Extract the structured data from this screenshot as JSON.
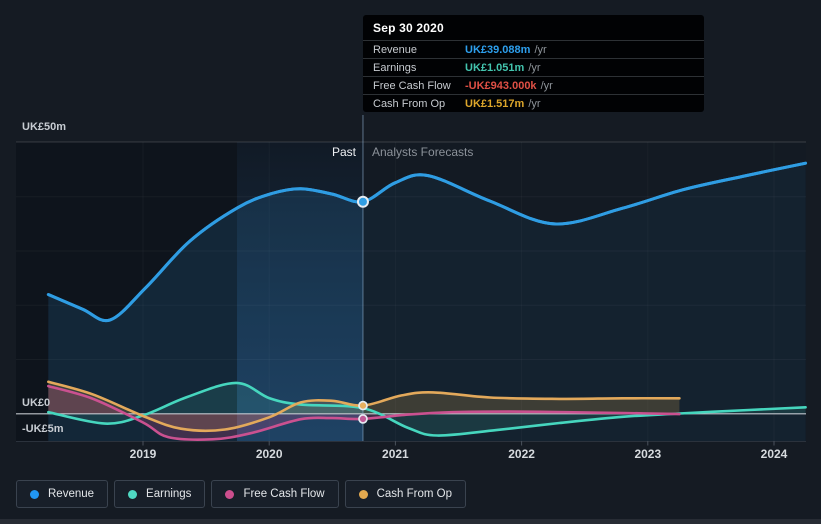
{
  "page": {
    "background": "#151b23",
    "bottom_bar_color": "#272c34"
  },
  "regions": {
    "past_label": "Past",
    "forecast_label": "Analysts Forecasts"
  },
  "axis": {
    "y_top": "UK£50m",
    "y_zero": "UK£0",
    "y_neg": "-UK£5m"
  },
  "tooltip": {
    "title": "Sep 30 2020",
    "unit_suffix": "/yr",
    "rows": [
      {
        "label": "Revenue",
        "value": "UK£39.088m",
        "color": "#2d9fed"
      },
      {
        "label": "Earnings",
        "value": "UK£1.051m",
        "color": "#43c4ae"
      },
      {
        "label": "Free Cash Flow",
        "value": "-UK£943.000k",
        "color": "#e05045"
      },
      {
        "label": "Cash From Op",
        "value": "UK£1.517m",
        "color": "#dda62b"
      }
    ]
  },
  "legend": [
    {
      "label": "Revenue",
      "color": "#2196f3"
    },
    {
      "label": "Earnings",
      "color": "#4fd8c2"
    },
    {
      "label": "Free Cash Flow",
      "color": "#cc4e8d"
    },
    {
      "label": "Cash From Op",
      "color": "#e2a94f"
    }
  ],
  "chart_data": {
    "type": "line",
    "title": "Past performance and analysts forecasts (UK£ millions per year)",
    "x_axis": {
      "unit": "year",
      "ticks": [
        2019,
        2020,
        2021,
        2022,
        2023,
        2024
      ],
      "range": [
        2018.25,
        2024.3
      ]
    },
    "y_axis": {
      "unit": "UK£m",
      "range": [
        -5,
        50
      ],
      "gridlines": [
        10,
        20,
        30,
        40
      ],
      "top_value": 50,
      "zero_value": 0
    },
    "divider_x": 2020.743,
    "highlight_band": [
      2019.745,
      2020.743
    ],
    "series": [
      {
        "name": "Revenue",
        "color": "#2f9de3",
        "width": 3,
        "baseline": "bottom",
        "split_fill": true,
        "fill_past": "rgba(47,157,227,0.14)",
        "fill_future": "rgba(47,157,227,0.065)",
        "points": [
          [
            2018.25,
            22.0
          ],
          [
            2018.52,
            19.3
          ],
          [
            2018.74,
            17.3
          ],
          [
            2019.02,
            23.2
          ],
          [
            2019.37,
            31.8
          ],
          [
            2019.75,
            38.0
          ],
          [
            2020.02,
            40.6
          ],
          [
            2020.25,
            41.5
          ],
          [
            2020.5,
            40.5
          ],
          [
            2020.743,
            39.088
          ],
          [
            2021.0,
            42.6
          ],
          [
            2021.26,
            43.9
          ],
          [
            2021.75,
            39.2
          ],
          [
            2022.26,
            35.0
          ],
          [
            2022.8,
            37.9
          ],
          [
            2023.28,
            41.3
          ],
          [
            2023.78,
            43.9
          ],
          [
            2024.25,
            46.2
          ]
        ]
      },
      {
        "name": "Cash From Op",
        "color": "#e3a95b",
        "width": 2.6,
        "baseline": "zero",
        "split_fill": false,
        "fill": "rgba(226,169,79,0.20)",
        "points": [
          [
            2018.25,
            5.9
          ],
          [
            2018.6,
            3.6
          ],
          [
            2019.0,
            -0.4
          ],
          [
            2019.3,
            -2.75
          ],
          [
            2019.65,
            -2.9
          ],
          [
            2020.0,
            -0.65
          ],
          [
            2020.25,
            2.1
          ],
          [
            2020.5,
            2.4
          ],
          [
            2020.743,
            1.517
          ],
          [
            2021.05,
            3.4
          ],
          [
            2021.3,
            3.95
          ],
          [
            2021.75,
            3.0
          ],
          [
            2022.3,
            2.75
          ],
          [
            2022.8,
            2.85
          ],
          [
            2023.25,
            2.85
          ]
        ]
      },
      {
        "name": "Free Cash Flow",
        "color": "#ca5190",
        "width": 2.6,
        "baseline": "zero",
        "split_fill": false,
        "fill": "rgba(204,78,141,0.24)",
        "points": [
          [
            2018.25,
            5.1
          ],
          [
            2018.6,
            2.8
          ],
          [
            2019.0,
            -1.6
          ],
          [
            2019.2,
            -4.3
          ],
          [
            2019.55,
            -4.7
          ],
          [
            2019.85,
            -3.6
          ],
          [
            2020.25,
            -1.0
          ],
          [
            2020.5,
            -0.8
          ],
          [
            2020.743,
            -0.943
          ],
          [
            2021.1,
            -0.15
          ],
          [
            2021.45,
            0.3
          ],
          [
            2021.9,
            0.4
          ],
          [
            2022.35,
            0.3
          ],
          [
            2022.8,
            0.15
          ],
          [
            2023.25,
            -0.05
          ]
        ]
      },
      {
        "name": "Earnings",
        "color": "#46d6be",
        "width": 2.6,
        "baseline": "zero",
        "split_fill": false,
        "fill": "rgba(77,216,194,0.13)",
        "points": [
          [
            2018.25,
            0.3
          ],
          [
            2018.7,
            -1.8
          ],
          [
            2019.0,
            -0.3
          ],
          [
            2019.35,
            3.1
          ],
          [
            2019.74,
            5.7
          ],
          [
            2020.0,
            2.9
          ],
          [
            2020.25,
            1.7
          ],
          [
            2020.743,
            1.051
          ],
          [
            2021.1,
            -2.6
          ],
          [
            2021.33,
            -4.0
          ],
          [
            2021.8,
            -3.0
          ],
          [
            2022.3,
            -1.7
          ],
          [
            2022.8,
            -0.55
          ],
          [
            2023.25,
            0.05
          ],
          [
            2023.8,
            0.7
          ],
          [
            2024.25,
            1.2
          ]
        ]
      }
    ],
    "markers": [
      {
        "series": "Revenue",
        "x": 2020.743,
        "value": 39.088,
        "color": "#2f9de3",
        "r": 5
      },
      {
        "series": "Cash From Op",
        "x": 2020.743,
        "value": 1.517,
        "color": "#e8b05f",
        "r": 4
      },
      {
        "series": "Free Cash Flow",
        "x": 2020.743,
        "value": -0.943,
        "color": "#c05a96",
        "r": 4
      }
    ]
  }
}
